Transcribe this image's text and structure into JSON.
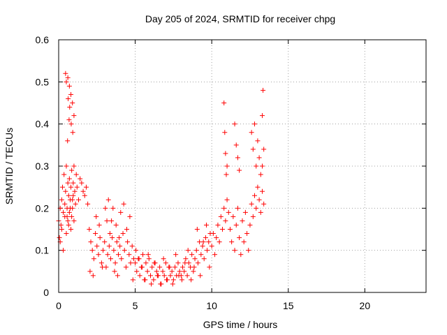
{
  "chart_data": {
    "type": "scatter",
    "title": "Day 205 of 2024, SRMTID for receiver chpg",
    "xlabel": "GPS time / hours",
    "ylabel": "SRMTID / TECUs",
    "xlim": [
      0,
      24
    ],
    "ylim": [
      0,
      0.6
    ],
    "xticks": [
      0,
      5,
      10,
      15,
      20
    ],
    "xtick_labels": [
      "0",
      "5",
      "10",
      "15",
      "20"
    ],
    "yticks": [
      0,
      0.1,
      0.2,
      0.3,
      0.4,
      0.5,
      0.6
    ],
    "ytick_labels": [
      "0",
      "0.1",
      "0.2",
      "0.3",
      "0.4",
      "0.5",
      "0.6"
    ],
    "grid": true,
    "marker": "+",
    "color": "#ff0000",
    "series": [
      {
        "name": "SRMTID",
        "x": [
          0.0,
          0.05,
          0.1,
          0.15,
          0.2,
          0.25,
          0.3,
          0.35,
          0.4,
          0.45,
          0.5,
          0.55,
          0.6,
          0.65,
          0.7,
          0.75,
          0.8,
          0.85,
          0.9,
          0.95,
          1.0,
          1.05,
          1.1,
          1.15,
          1.2,
          1.3,
          1.4,
          1.5,
          1.6,
          1.7,
          1.8,
          1.9,
          0.1,
          0.2,
          0.3,
          0.4,
          0.5,
          0.55,
          0.6,
          0.65,
          0.7,
          0.75,
          0.8,
          0.85,
          0.9,
          0.95,
          1.0,
          0.45,
          0.5,
          0.6,
          0.7,
          0.8,
          0.9,
          1.0,
          0.62,
          0.72,
          0.82,
          0.92,
          0.58,
          0.68,
          2.0,
          2.1,
          2.2,
          2.3,
          2.4,
          2.5,
          2.6,
          2.7,
          2.8,
          2.9,
          3.0,
          3.1,
          3.2,
          3.3,
          3.4,
          3.5,
          3.6,
          3.7,
          3.8,
          3.9,
          4.0,
          4.1,
          4.2,
          4.3,
          4.4,
          4.5,
          4.6,
          4.7,
          4.8,
          4.9,
          2.05,
          2.25,
          2.45,
          2.65,
          2.85,
          3.05,
          3.25,
          3.45,
          3.65,
          3.85,
          4.05,
          4.25,
          4.45,
          4.65,
          4.85,
          3.15,
          3.35,
          3.55,
          3.75,
          3.95,
          5.0,
          5.1,
          5.2,
          5.3,
          5.4,
          5.5,
          5.6,
          5.7,
          5.8,
          5.9,
          6.0,
          6.1,
          6.2,
          6.3,
          6.4,
          6.5,
          6.6,
          6.7,
          6.8,
          6.9,
          7.0,
          7.1,
          7.2,
          7.3,
          7.4,
          7.5,
          7.6,
          7.7,
          7.8,
          7.9,
          8.0,
          8.1,
          8.2,
          8.3,
          8.4,
          8.5,
          8.6,
          8.7,
          8.8,
          8.9,
          9.0,
          9.1,
          9.2,
          9.3,
          9.4,
          9.5,
          9.6,
          9.7,
          9.8,
          9.9,
          5.05,
          5.25,
          5.45,
          5.65,
          5.85,
          6.05,
          6.25,
          6.45,
          6.65,
          6.85,
          7.05,
          7.25,
          7.45,
          7.65,
          7.85,
          8.05,
          8.25,
          8.45,
          8.65,
          8.85,
          9.05,
          9.25,
          9.45,
          9.65,
          9.85,
          10.0,
          10.1,
          10.2,
          10.3,
          10.4,
          10.5,
          10.6,
          10.7,
          10.8,
          10.9,
          11.0,
          11.1,
          11.2,
          11.3,
          11.4,
          11.5,
          11.6,
          11.7,
          11.8,
          11.9,
          12.0,
          12.1,
          12.2,
          12.3,
          12.4,
          12.5,
          12.6,
          12.7,
          12.8,
          12.9,
          13.0,
          13.1,
          13.2,
          13.3,
          13.4,
          10.8,
          10.85,
          10.9,
          10.95,
          11.0,
          11.5,
          11.6,
          11.7,
          11.8,
          12.6,
          12.7,
          12.8,
          12.9,
          13.0,
          13.1,
          13.2,
          13.3,
          13.35,
          13.4,
          13.3
        ],
        "y": [
          0.17,
          0.13,
          0.2,
          0.16,
          0.22,
          0.25,
          0.19,
          0.28,
          0.21,
          0.24,
          0.3,
          0.18,
          0.26,
          0.23,
          0.27,
          0.2,
          0.25,
          0.29,
          0.22,
          0.26,
          0.3,
          0.24,
          0.21,
          0.28,
          0.25,
          0.22,
          0.27,
          0.26,
          0.24,
          0.23,
          0.25,
          0.21,
          0.12,
          0.15,
          0.1,
          0.18,
          0.14,
          0.2,
          0.17,
          0.16,
          0.19,
          0.22,
          0.15,
          0.18,
          0.2,
          0.23,
          0.17,
          0.52,
          0.5,
          0.51,
          0.49,
          0.47,
          0.45,
          0.42,
          0.46,
          0.44,
          0.4,
          0.38,
          0.36,
          0.41,
          0.15,
          0.12,
          0.1,
          0.08,
          0.14,
          0.11,
          0.09,
          0.13,
          0.07,
          0.1,
          0.12,
          0.06,
          0.09,
          0.11,
          0.08,
          0.13,
          0.1,
          0.07,
          0.12,
          0.09,
          0.11,
          0.08,
          0.14,
          0.1,
          0.06,
          0.12,
          0.09,
          0.07,
          0.11,
          0.08,
          0.05,
          0.04,
          0.18,
          0.16,
          0.06,
          0.2,
          0.22,
          0.17,
          0.05,
          0.04,
          0.19,
          0.21,
          0.15,
          0.18,
          0.03,
          0.17,
          0.14,
          0.2,
          0.16,
          0.13,
          0.07,
          0.05,
          0.08,
          0.04,
          0.06,
          0.09,
          0.03,
          0.07,
          0.05,
          0.08,
          0.04,
          0.06,
          0.03,
          0.07,
          0.05,
          0.04,
          0.06,
          0.02,
          0.05,
          0.04,
          0.07,
          0.03,
          0.06,
          0.04,
          0.05,
          0.03,
          0.06,
          0.04,
          0.07,
          0.05,
          0.04,
          0.06,
          0.05,
          0.08,
          0.04,
          0.07,
          0.06,
          0.09,
          0.05,
          0.08,
          0.1,
          0.07,
          0.12,
          0.09,
          0.11,
          0.08,
          0.13,
          0.1,
          0.12,
          0.14,
          0.1,
          0.08,
          0.06,
          0.03,
          0.09,
          0.02,
          0.07,
          0.04,
          0.02,
          0.08,
          0.03,
          0.06,
          0.02,
          0.09,
          0.04,
          0.03,
          0.07,
          0.1,
          0.03,
          0.06,
          0.15,
          0.04,
          0.12,
          0.16,
          0.06,
          0.11,
          0.14,
          0.09,
          0.13,
          0.16,
          0.12,
          0.18,
          0.15,
          0.2,
          0.17,
          0.22,
          0.19,
          0.15,
          0.12,
          0.18,
          0.1,
          0.16,
          0.2,
          0.13,
          0.09,
          0.17,
          0.12,
          0.19,
          0.14,
          0.1,
          0.16,
          0.21,
          0.18,
          0.23,
          0.2,
          0.25,
          0.22,
          0.19,
          0.24,
          0.21,
          0.45,
          0.38,
          0.33,
          0.28,
          0.3,
          0.4,
          0.35,
          0.32,
          0.29,
          0.38,
          0.34,
          0.4,
          0.3,
          0.36,
          0.32,
          0.28,
          0.42,
          0.48,
          0.34,
          0.3
        ]
      }
    ]
  }
}
